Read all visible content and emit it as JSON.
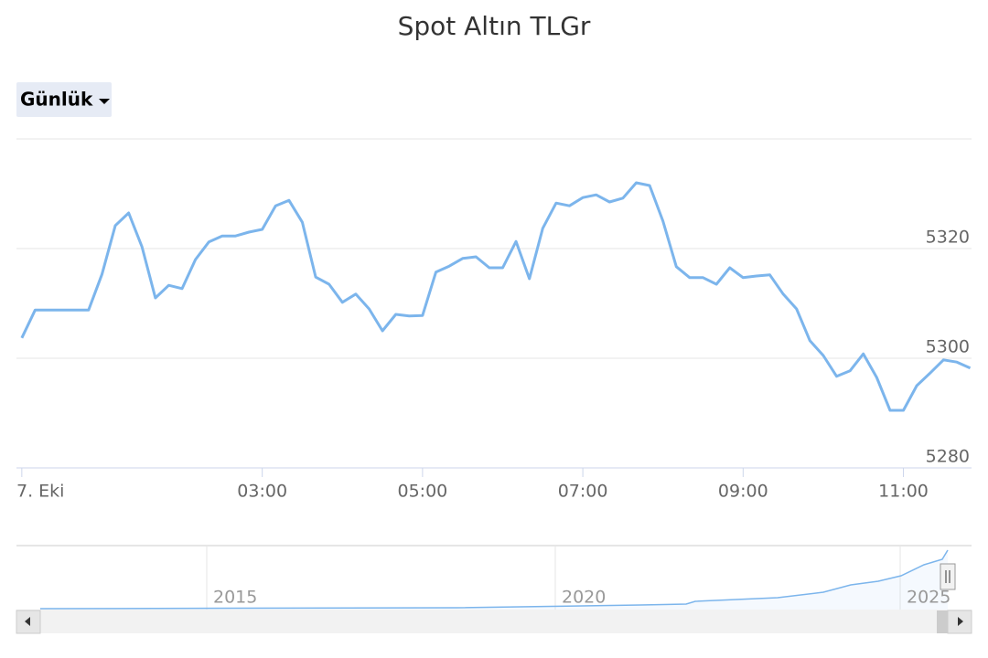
{
  "chart_data": {
    "type": "line",
    "title": "Spot Altın TLGr",
    "x": [
      0,
      10,
      20,
      30,
      40,
      50,
      60,
      70,
      80,
      90,
      100,
      110,
      120,
      130,
      140,
      150,
      160,
      170,
      180,
      190,
      200,
      210,
      220,
      230,
      240,
      250,
      260,
      270,
      280,
      290,
      300,
      310,
      320,
      330,
      340,
      350,
      360,
      370,
      380,
      390,
      400,
      410,
      420,
      430,
      440,
      450,
      460,
      470,
      480,
      490,
      500,
      510,
      520,
      530,
      540,
      550,
      560,
      570,
      580,
      590,
      600,
      610,
      620,
      630,
      640,
      650,
      660,
      670,
      680,
      690,
      700,
      710
    ],
    "series": [
      {
        "color": "#7cb5ec",
        "values": [
          5303.7,
          5308.8,
          5308.8,
          5308.8,
          5308.8,
          5308.8,
          5315.3,
          5324.2,
          5326.5,
          5320.3,
          5311.0,
          5313.3,
          5312.7,
          5318.0,
          5321.2,
          5322.3,
          5322.3,
          5323.0,
          5323.5,
          5327.8,
          5328.8,
          5324.8,
          5314.8,
          5313.5,
          5310.2,
          5311.7,
          5309.0,
          5305.0,
          5308.0,
          5307.7,
          5307.8,
          5315.7,
          5316.8,
          5318.2,
          5318.5,
          5316.5,
          5316.5,
          5321.3,
          5314.5,
          5323.7,
          5328.3,
          5327.8,
          5329.3,
          5329.8,
          5328.5,
          5329.2,
          5332.0,
          5331.5,
          5325.0,
          5316.7,
          5314.7,
          5314.7,
          5313.5,
          5316.5,
          5314.7,
          5315.0,
          5315.2,
          5311.7,
          5309.0,
          5303.2,
          5300.5,
          5296.7,
          5297.7,
          5300.8,
          5296.5,
          5290.5,
          5290.5,
          5295.0,
          5297.3,
          5299.7,
          5299.3,
          5298.2
        ]
      }
    ],
    "xlim": [
      -4,
      711
    ],
    "xticks": [
      {
        "value": 0,
        "label": "7. Eki"
      },
      {
        "value": 180,
        "label": "03:00"
      },
      {
        "value": 300,
        "label": "05:00"
      },
      {
        "value": 420,
        "label": "07:00"
      },
      {
        "value": 540,
        "label": "09:00"
      },
      {
        "value": 660,
        "label": "11:00"
      }
    ],
    "ylim": [
      5280,
      5340
    ],
    "yticks": [
      5280,
      5300,
      5320
    ],
    "grid": true
  },
  "controls": {
    "period": "Günlük"
  },
  "navigator": {
    "labels": [
      "2015",
      "2020",
      "2025"
    ]
  }
}
